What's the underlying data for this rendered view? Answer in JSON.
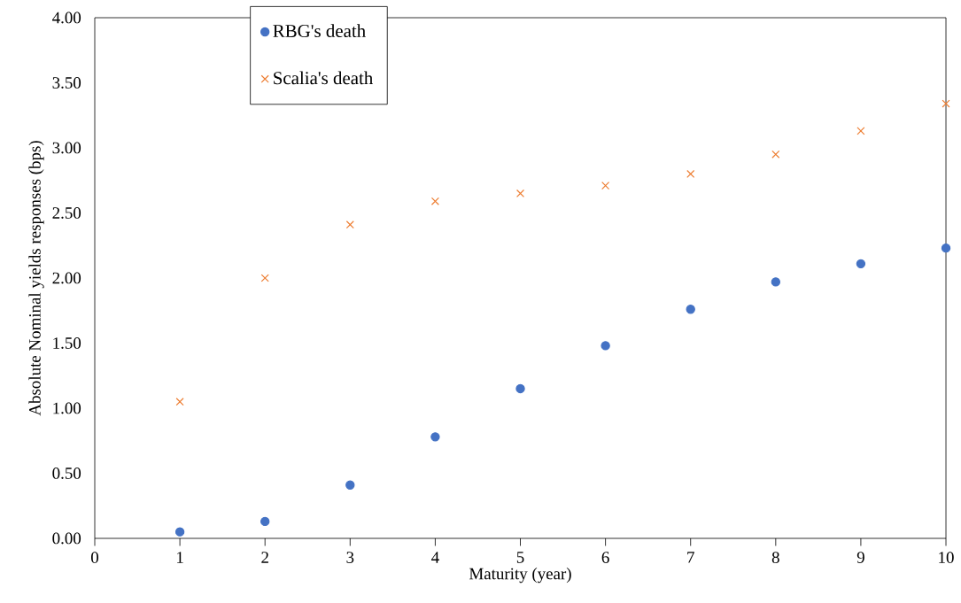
{
  "chart_data": {
    "type": "scatter",
    "xlabel": "Maturity (year)",
    "ylabel": "Absolute Nominal yields responses (bps)",
    "x": [
      1,
      2,
      3,
      4,
      5,
      6,
      7,
      8,
      9,
      10
    ],
    "series": [
      {
        "name": "RBG's death",
        "color": "#4472c4",
        "marker": "circle",
        "values": [
          0.05,
          0.13,
          0.41,
          0.78,
          1.15,
          1.48,
          1.76,
          1.97,
          2.11,
          2.23
        ]
      },
      {
        "name": "Scalia's death",
        "color": "#ed7d31",
        "marker": "cross",
        "values": [
          1.05,
          2.0,
          2.41,
          2.59,
          2.65,
          2.71,
          2.8,
          2.95,
          3.13,
          3.34
        ]
      }
    ],
    "xlim": [
      0,
      10
    ],
    "xticks": [
      0,
      1,
      2,
      3,
      4,
      5,
      6,
      7,
      8,
      9,
      10
    ],
    "ylim": [
      0,
      4
    ],
    "yticks": [
      {
        "value": 0,
        "label": "0.00"
      },
      {
        "value": 0.5,
        "label": "0.50"
      },
      {
        "value": 1,
        "label": "1.00"
      },
      {
        "value": 1.5,
        "label": "1.50"
      },
      {
        "value": 2,
        "label": "2.00"
      },
      {
        "value": 2.5,
        "label": "2.50"
      },
      {
        "value": 3,
        "label": "3.00"
      },
      {
        "value": 3.5,
        "label": "3.50"
      },
      {
        "value": 4,
        "label": "4.00"
      }
    ],
    "grid": false,
    "legend": "top left"
  }
}
